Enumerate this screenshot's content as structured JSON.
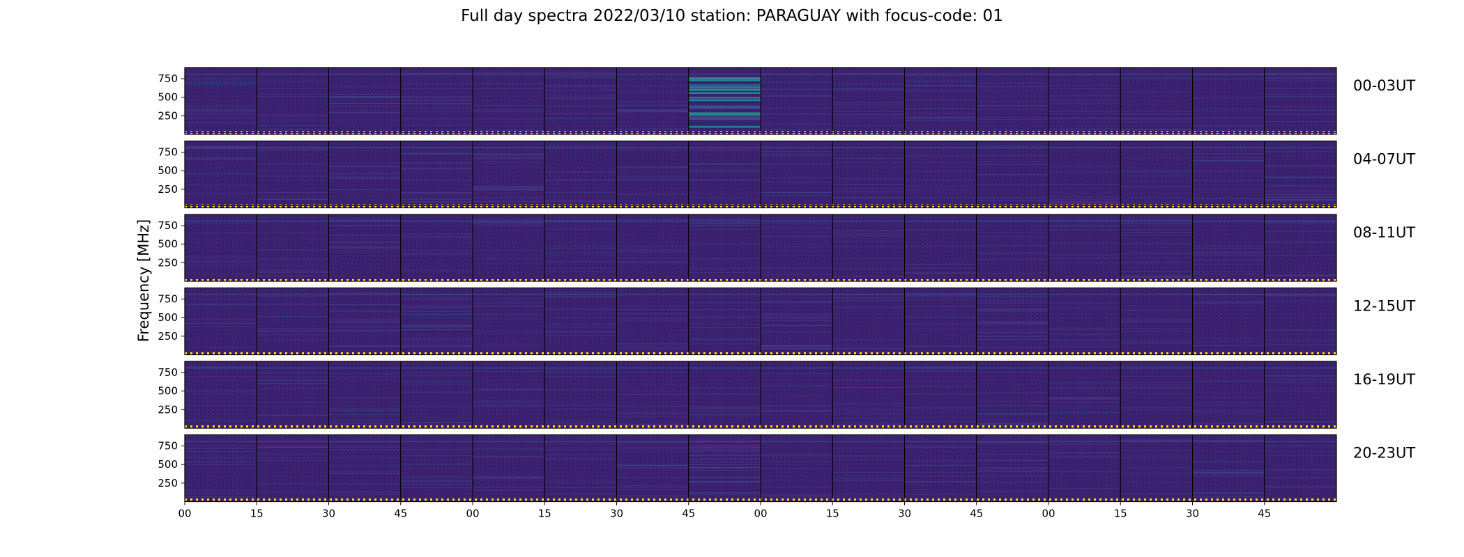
{
  "figure": {
    "title": "Full day spectra 2022/03/10 station: PARAGUAY with focus-code: 01"
  },
  "chart_data": {
    "type": "heatmap",
    "title": "Full day spectra 2022/03/10 station: PARAGUAY with focus-code: 01",
    "ylabel": "Frequency [MHz]",
    "xlabel": "",
    "colormap": "viridis",
    "colors": {
      "background": "#3b1f6e",
      "low": "#440154",
      "mid": "#3b528b",
      "high": "#21918c",
      "peak": "#5ec962",
      "marker": "#fde725"
    },
    "yticks": [
      750,
      500,
      250
    ],
    "ylim": [
      0,
      900
    ],
    "xticks": [
      "00",
      "15",
      "30",
      "45",
      "00",
      "15",
      "30",
      "45",
      "00",
      "15",
      "30",
      "45",
      "00",
      "15",
      "30",
      "45"
    ],
    "panels_per_row": 16,
    "panel_minutes": 15,
    "rows": [
      {
        "label": "00-03UT",
        "hours": [
          0,
          1,
          2,
          3
        ],
        "activity": [
          0.25,
          0.2,
          0.3,
          0.25,
          0.15,
          0.3,
          0.3,
          0.95,
          0.2,
          0.25,
          0.3,
          0.2,
          0.25,
          0.2,
          0.2,
          0.3
        ]
      },
      {
        "label": "04-07UT",
        "hours": [
          4,
          5,
          6,
          7
        ],
        "activity": [
          0.2,
          0.15,
          0.2,
          0.3,
          0.35,
          0.15,
          0.15,
          0.15,
          0.2,
          0.15,
          0.15,
          0.2,
          0.15,
          0.2,
          0.2,
          0.35
        ]
      },
      {
        "label": "08-11UT",
        "hours": [
          8,
          9,
          10,
          11
        ],
        "activity": [
          0.15,
          0.15,
          0.25,
          0.1,
          0.1,
          0.2,
          0.15,
          0.2,
          0.15,
          0.2,
          0.1,
          0.15,
          0.15,
          0.3,
          0.2,
          0.15
        ]
      },
      {
        "label": "12-15UT",
        "hours": [
          12,
          13,
          14,
          15
        ],
        "activity": [
          0.15,
          0.2,
          0.3,
          0.45,
          0.15,
          0.25,
          0.2,
          0.2,
          0.35,
          0.2,
          0.2,
          0.4,
          0.15,
          0.15,
          0.15,
          0.15
        ]
      },
      {
        "label": "16-19UT",
        "hours": [
          16,
          17,
          18,
          19
        ],
        "activity": [
          0.15,
          0.15,
          0.15,
          0.15,
          0.15,
          0.15,
          0.15,
          0.15,
          0.15,
          0.15,
          0.15,
          0.15,
          0.2,
          0.15,
          0.15,
          0.15
        ]
      },
      {
        "label": "20-23UT",
        "hours": [
          20,
          21,
          22,
          23
        ],
        "activity": [
          0.2,
          0.2,
          0.3,
          0.15,
          0.2,
          0.15,
          0.25,
          0.6,
          0.15,
          0.15,
          0.2,
          0.3,
          0.15,
          0.15,
          0.25,
          0.15
        ]
      }
    ]
  }
}
